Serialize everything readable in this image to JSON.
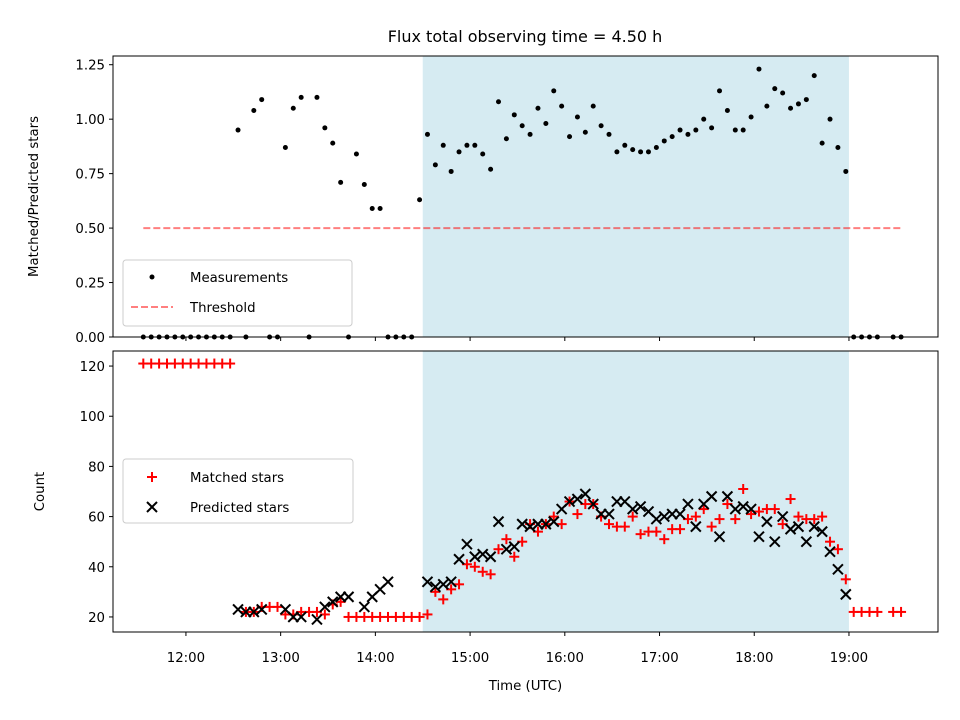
{
  "title": "Flux total observing time = 4.50 h",
  "colors": {
    "highlight": "#add8e6",
    "measurements": "#000000",
    "threshold": "#ff0000",
    "matched": "#ff0000",
    "predicted": "#000000"
  },
  "chart_data": [
    {
      "type": "scatter",
      "panel": "top",
      "ylabel": "Matched/Predicted stars",
      "xlabel": "",
      "xlim_hours": [
        11.23,
        19.94
      ],
      "ylim": [
        0,
        1.29
      ],
      "yticks": [
        0.0,
        0.25,
        0.5,
        0.75,
        1.0,
        1.25
      ],
      "ytick_labels": [
        "0.00",
        "0.25",
        "0.50",
        "0.75",
        "1.00",
        "1.25"
      ],
      "highlight_span": [
        "14:30",
        "19:00"
      ],
      "legend": {
        "position": "lower-left",
        "entries": [
          "Measurements",
          "Threshold"
        ]
      },
      "threshold": {
        "name": "Threshold",
        "value": 0.5,
        "x_range": [
          "11:33",
          "19:33"
        ],
        "style": "dashed"
      },
      "series": [
        {
          "name": "Measurements",
          "marker": "dot",
          "x": [
            "11:33",
            "11:38",
            "11:43",
            "11:48",
            "11:53",
            "11:58",
            "12:03",
            "12:08",
            "12:13",
            "12:18",
            "12:23",
            "12:28",
            "12:33",
            "12:38",
            "12:43",
            "12:48",
            "12:53",
            "12:58",
            "13:03",
            "13:08",
            "13:13",
            "13:18",
            "13:23",
            "13:28",
            "13:33",
            "13:38",
            "13:43",
            "13:48",
            "13:53",
            "13:58",
            "14:03",
            "14:08",
            "14:13",
            "14:18",
            "14:23",
            "14:28",
            "14:33",
            "14:38",
            "14:43",
            "14:48",
            "14:53",
            "14:58",
            "15:03",
            "15:08",
            "15:13",
            "15:18",
            "15:23",
            "15:28",
            "15:33",
            "15:38",
            "15:43",
            "15:48",
            "15:53",
            "15:58",
            "16:03",
            "16:08",
            "16:13",
            "16:18",
            "16:23",
            "16:28",
            "16:33",
            "16:38",
            "16:43",
            "16:48",
            "16:53",
            "16:58",
            "17:03",
            "17:08",
            "17:13",
            "17:18",
            "17:23",
            "17:28",
            "17:33",
            "17:38",
            "17:43",
            "17:48",
            "17:53",
            "17:58",
            "18:03",
            "18:08",
            "18:13",
            "18:18",
            "18:23",
            "18:28",
            "18:33",
            "18:38",
            "18:43",
            "18:48",
            "18:53",
            "18:58",
            "19:03",
            "19:08",
            "19:13",
            "19:18",
            "19:28",
            "19:33"
          ],
          "y": [
            0,
            0,
            0,
            0,
            0,
            0,
            0,
            0,
            0,
            0,
            0,
            0,
            0.95,
            0,
            1.04,
            1.09,
            0,
            0,
            0.87,
            1.05,
            1.1,
            0,
            1.1,
            0.96,
            0.89,
            0.71,
            0,
            0.84,
            0.7,
            0.59,
            0.59,
            0,
            0,
            0,
            0,
            0.63,
            0.93,
            0.79,
            0.88,
            0.76,
            0.85,
            0.88,
            0.88,
            0.84,
            0.77,
            1.08,
            0.91,
            1.02,
            0.97,
            0.93,
            1.05,
            0.98,
            1.13,
            1.06,
            0.92,
            1.01,
            0.94,
            1.06,
            0.97,
            0.93,
            0.85,
            0.88,
            0.86,
            0.85,
            0.85,
            0.87,
            0.9,
            0.92,
            0.95,
            0.93,
            0.95,
            1.0,
            0.96,
            1.13,
            1.04,
            0.95,
            0.95,
            1.01,
            1.23,
            1.06,
            1.14,
            1.12,
            1.05,
            1.07,
            1.09,
            1.2,
            0.89,
            1.0,
            0.87,
            0.76,
            0,
            0,
            0,
            0,
            0,
            0
          ]
        }
      ]
    },
    {
      "type": "scatter",
      "panel": "bottom",
      "ylabel": "Count",
      "xlabel": "Time (UTC)",
      "xlim_hours": [
        11.23,
        19.94
      ],
      "ylim": [
        14,
        126
      ],
      "yticks": [
        20,
        40,
        60,
        80,
        100,
        120
      ],
      "ytick_labels": [
        "20",
        "40",
        "60",
        "80",
        "100",
        "120"
      ],
      "xtick_labels": [
        "12:00",
        "13:00",
        "14:00",
        "15:00",
        "16:00",
        "17:00",
        "18:00",
        "19:00"
      ],
      "highlight_span": [
        "14:30",
        "19:00"
      ],
      "legend": {
        "position": "center-left",
        "entries": [
          "Matched stars",
          "Predicted stars"
        ]
      },
      "series": [
        {
          "name": "Matched stars",
          "marker": "plus",
          "x": [
            "11:33",
            "11:38",
            "11:43",
            "11:48",
            "11:53",
            "11:58",
            "12:03",
            "12:08",
            "12:13",
            "12:18",
            "12:23",
            "12:28",
            "12:38",
            "12:43",
            "12:48",
            "12:53",
            "12:58",
            "13:03",
            "13:08",
            "13:13",
            "13:18",
            "13:23",
            "13:28",
            "13:33",
            "13:38",
            "13:43",
            "13:48",
            "13:53",
            "13:58",
            "14:03",
            "14:08",
            "14:13",
            "14:18",
            "14:23",
            "14:28",
            "14:33",
            "14:38",
            "14:43",
            "14:48",
            "14:53",
            "14:58",
            "15:03",
            "15:08",
            "15:13",
            "15:18",
            "15:23",
            "15:28",
            "15:33",
            "15:38",
            "15:43",
            "15:48",
            "15:53",
            "15:58",
            "16:03",
            "16:08",
            "16:13",
            "16:18",
            "16:23",
            "16:28",
            "16:33",
            "16:38",
            "16:43",
            "16:48",
            "16:53",
            "16:58",
            "17:03",
            "17:08",
            "17:13",
            "17:18",
            "17:23",
            "17:28",
            "17:33",
            "17:38",
            "17:43",
            "17:48",
            "17:53",
            "17:58",
            "18:03",
            "18:08",
            "18:13",
            "18:18",
            "18:23",
            "18:28",
            "18:33",
            "18:38",
            "18:43",
            "18:48",
            "18:53",
            "18:58",
            "19:03",
            "19:08",
            "19:13",
            "19:18",
            "19:28",
            "19:33"
          ],
          "y": [
            121,
            121,
            121,
            121,
            121,
            121,
            121,
            121,
            121,
            121,
            121,
            121,
            22,
            22,
            24,
            24,
            24,
            21,
            21,
            22,
            22,
            22,
            21,
            25,
            26,
            20,
            20,
            20,
            20,
            20,
            20,
            20,
            20,
            20,
            20,
            21,
            30,
            27,
            31,
            33,
            41,
            40,
            38,
            37,
            47,
            51,
            44,
            50,
            57,
            54,
            57,
            60,
            57,
            66,
            61,
            65,
            65,
            60,
            57,
            56,
            56,
            60,
            53,
            54,
            54,
            51,
            55,
            55,
            59,
            60,
            63,
            56,
            59,
            65,
            59,
            71,
            61,
            62,
            63,
            63,
            57,
            67,
            60,
            59,
            59,
            60,
            50,
            47,
            35,
            22,
            22,
            22,
            22,
            22,
            22
          ]
        },
        {
          "name": "Predicted stars",
          "marker": "x",
          "x": [
            "12:33",
            "12:38",
            "12:43",
            "12:48",
            "13:03",
            "13:08",
            "13:13",
            "13:23",
            "13:28",
            "13:33",
            "13:38",
            "13:43",
            "13:53",
            "13:58",
            "14:03",
            "14:08",
            "14:33",
            "14:38",
            "14:43",
            "14:48",
            "14:53",
            "14:58",
            "15:03",
            "15:08",
            "15:13",
            "15:18",
            "15:23",
            "15:28",
            "15:33",
            "15:38",
            "15:43",
            "15:48",
            "15:53",
            "15:58",
            "16:03",
            "16:08",
            "16:13",
            "16:18",
            "16:23",
            "16:28",
            "16:33",
            "16:38",
            "16:43",
            "16:48",
            "16:53",
            "16:58",
            "17:03",
            "17:08",
            "17:13",
            "17:18",
            "17:23",
            "17:28",
            "17:33",
            "17:38",
            "17:43",
            "17:48",
            "17:53",
            "17:58",
            "18:03",
            "18:08",
            "18:13",
            "18:18",
            "18:23",
            "18:28",
            "18:33",
            "18:38",
            "18:43",
            "18:48",
            "18:53",
            "18:58"
          ],
          "y": [
            23,
            22,
            22,
            23,
            23,
            20,
            20,
            19,
            24,
            26,
            28,
            28,
            24,
            28,
            31,
            34,
            34,
            32,
            33,
            34,
            43,
            49,
            44,
            45,
            44,
            58,
            47,
            48,
            57,
            56,
            57,
            57,
            58,
            63,
            66,
            67,
            69,
            65,
            61,
            61,
            66,
            66,
            63,
            64,
            62,
            59,
            60,
            61,
            61,
            65,
            56,
            65,
            68,
            52,
            68,
            63,
            64,
            63,
            52,
            58,
            50,
            60,
            55,
            56,
            50,
            56,
            54,
            46,
            39,
            29
          ]
        }
      ]
    }
  ]
}
